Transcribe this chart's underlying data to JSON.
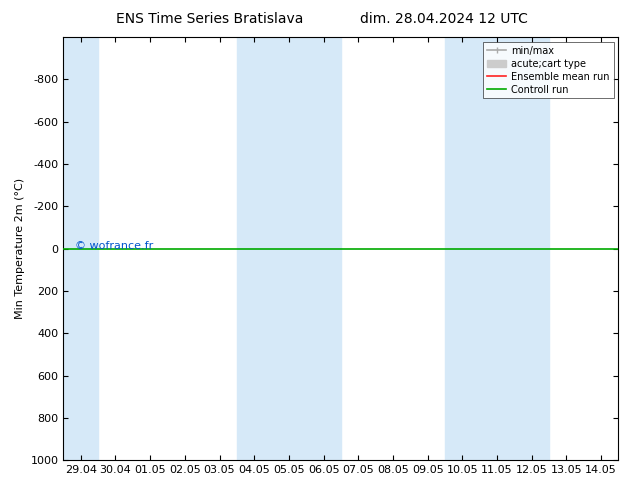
{
  "title": "ENS Time Series Bratislava",
  "title2": "dim. 28.04.2024 12 UTC",
  "ylabel": "Min Temperature 2m (°C)",
  "ylim": [
    1000,
    -1000
  ],
  "yticks": [
    -800,
    -600,
    -400,
    -200,
    0,
    200,
    400,
    600,
    800,
    1000
  ],
  "background_color": "#ffffff",
  "plot_bg_color": "#ffffff",
  "shade_color": "#d6e9f8",
  "x_labels": [
    "29.04",
    "30.04",
    "01.05",
    "02.05",
    "03.05",
    "04.05",
    "05.05",
    "06.05",
    "07.05",
    "08.05",
    "09.05",
    "10.05",
    "11.05",
    "12.05",
    "13.05",
    "14.05"
  ],
  "shade_x_indices": [
    0,
    5,
    6,
    7,
    11,
    12,
    13
  ],
  "green_line_y": 0,
  "copyright_text": "© wofrance.fr",
  "copyright_color": "#0055cc",
  "legend_items": [
    {
      "label": "min/max",
      "color": "#aaaaaa",
      "lw": 1.2
    },
    {
      "label": "acute;cart type",
      "color": "#cccccc",
      "lw": 5
    },
    {
      "label": "Ensemble mean run",
      "color": "#ff2222",
      "lw": 1.2
    },
    {
      "label": "Controll run",
      "color": "#00aa00",
      "lw": 1.2
    }
  ],
  "title_fontsize": 10,
  "tick_fontsize": 8,
  "ylabel_fontsize": 8
}
